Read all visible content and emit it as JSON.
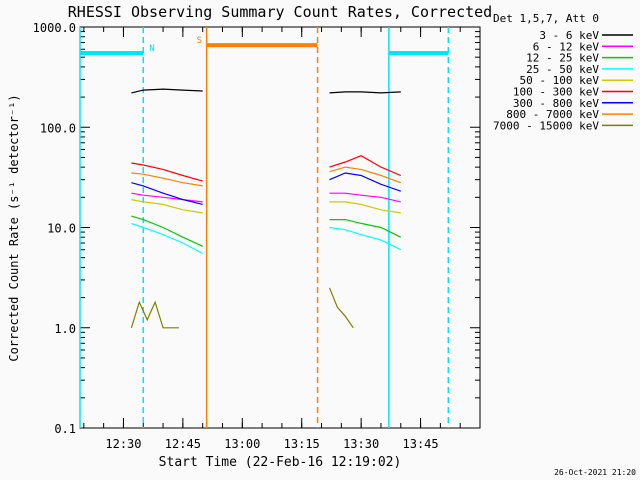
{
  "chart_data": {
    "type": "line",
    "title": "RHESSI Observing Summary Count Rates, Corrected",
    "ylabel": "Corrected Count Rate (s⁻¹ detector⁻¹)",
    "xlabel": "Start Time (22-Feb-16 12:19:02)",
    "yscale": "log",
    "ylim": [
      0.1,
      1000
    ],
    "xlim": [
      "12:19:02",
      "14:00:00"
    ],
    "grid": false,
    "legend_placement": "right",
    "yticks": [
      "0.1",
      "1.0",
      "10.0",
      "100.0",
      "1000.0"
    ],
    "xticks": [
      "12:30",
      "12:45",
      "13:00",
      "13:15",
      "13:30",
      "13:45"
    ],
    "legend_header": "Det 1,5,7, Att 0",
    "series": [
      {
        "name": "3 - 6 keV",
        "color": "#000000",
        "segments": [
          {
            "x": [
              "12:32",
              "12:35",
              "12:40",
              "12:45",
              "12:50"
            ],
            "y": [
              220,
              235,
              240,
              235,
              230
            ]
          },
          {
            "x": [
              "13:22",
              "13:26",
              "13:30",
              "13:35",
              "13:40"
            ],
            "y": [
              220,
              225,
              225,
              220,
              225
            ]
          }
        ]
      },
      {
        "name": "6 - 12 keV",
        "color": "#ff00ff",
        "segments": [
          {
            "x": [
              "12:32",
              "12:35",
              "12:40",
              "12:45",
              "12:50"
            ],
            "y": [
              22,
              21,
              20,
              19,
              18
            ]
          },
          {
            "x": [
              "13:22",
              "13:26",
              "13:30",
              "13:35",
              "13:40"
            ],
            "y": [
              22,
              22,
              21,
              20,
              18
            ]
          }
        ]
      },
      {
        "name": "12 - 25 keV",
        "color": "#00cc00",
        "segments": [
          {
            "x": [
              "12:32",
              "12:35",
              "12:40",
              "12:45",
              "12:50"
            ],
            "y": [
              13,
              12,
              10,
              8,
              6.5
            ]
          },
          {
            "x": [
              "13:22",
              "13:26",
              "13:30",
              "13:35",
              "13:40"
            ],
            "y": [
              12,
              12,
              11,
              10,
              8
            ]
          }
        ]
      },
      {
        "name": "25 - 50 keV",
        "color": "#00ffff",
        "segments": [
          {
            "x": [
              "12:32",
              "12:35",
              "12:40",
              "12:45",
              "12:50"
            ],
            "y": [
              11,
              10,
              8.5,
              7,
              5.5
            ]
          },
          {
            "x": [
              "13:22",
              "13:26",
              "13:30",
              "13:35",
              "13:40"
            ],
            "y": [
              10,
              9.5,
              8.5,
              7.5,
              6
            ]
          }
        ]
      },
      {
        "name": "50 - 100 keV",
        "color": "#cccc00",
        "segments": [
          {
            "x": [
              "12:32",
              "12:35",
              "12:40",
              "12:45",
              "12:50"
            ],
            "y": [
              19,
              18,
              17,
              15,
              14
            ]
          },
          {
            "x": [
              "13:22",
              "13:26",
              "13:30",
              "13:35",
              "13:40"
            ],
            "y": [
              18,
              18,
              17,
              15,
              14
            ]
          }
        ]
      },
      {
        "name": "100 - 300 keV",
        "color": "#ff0000",
        "segments": [
          {
            "x": [
              "12:32",
              "12:35",
              "12:40",
              "12:45",
              "12:50"
            ],
            "y": [
              44,
              42,
              38,
              33,
              29
            ]
          },
          {
            "x": [
              "13:22",
              "13:26",
              "13:30",
              "13:35",
              "13:40"
            ],
            "y": [
              40,
              45,
              52,
              40,
              33
            ]
          }
        ]
      },
      {
        "name": "300 - 800 keV",
        "color": "#0000ff",
        "segments": [
          {
            "x": [
              "12:32",
              "12:35",
              "12:40",
              "12:45",
              "12:50"
            ],
            "y": [
              28,
              26,
              22,
              19,
              17
            ]
          },
          {
            "x": [
              "13:22",
              "13:26",
              "13:30",
              "13:35",
              "13:40"
            ],
            "y": [
              30,
              35,
              33,
              27,
              23
            ]
          }
        ]
      },
      {
        "name": "800 - 7000 keV",
        "color": "#ff8000",
        "segments": [
          {
            "x": [
              "12:32",
              "12:35",
              "12:40",
              "12:45",
              "12:50"
            ],
            "y": [
              35,
              34,
              31,
              28,
              26
            ]
          },
          {
            "x": [
              "13:22",
              "13:26",
              "13:30",
              "13:35",
              "13:40"
            ],
            "y": [
              36,
              40,
              38,
              33,
              28
            ]
          }
        ]
      },
      {
        "name": "7000 - 15000 keV",
        "color": "#808000",
        "segments": [
          {
            "x": [
              "12:32",
              "12:34",
              "12:36",
              "12:38",
              "12:40",
              "12:44"
            ],
            "y": [
              1.0,
              1.8,
              1.2,
              1.8,
              1.0,
              1.0
            ]
          },
          {
            "x": [
              "13:22",
              "13:24",
              "13:26",
              "13:28"
            ],
            "y": [
              2.5,
              1.6,
              1.3,
              1.0
            ]
          }
        ]
      }
    ],
    "annotations": {
      "flags": [
        {
          "label": "N",
          "color": "#00e5ff",
          "level": 550,
          "ranges": [
            [
              "12:19:02",
              "12:35:00"
            ],
            [
              "13:37:00",
              "13:52:00"
            ]
          ]
        },
        {
          "label": "S",
          "color": "#ff8000",
          "level": 660,
          "ranges": [
            [
              "12:51:00",
              "13:19:00"
            ]
          ]
        }
      ],
      "vlines": [
        {
          "x": "12:19:02",
          "color": "#00e5ff",
          "style": "solid"
        },
        {
          "x": "12:35:00",
          "color": "#00e5ff",
          "style": "dashed"
        },
        {
          "x": "12:51:00",
          "color": "#ff8000",
          "style": "solid"
        },
        {
          "x": "13:19:00",
          "color": "#ff8000",
          "style": "dashed"
        },
        {
          "x": "13:37:00",
          "color": "#00e5ff",
          "style": "solid"
        },
        {
          "x": "13:52:00",
          "color": "#00e5ff",
          "style": "dashed"
        }
      ]
    }
  },
  "footer_timestamp": "26-Oct-2021 21:20"
}
